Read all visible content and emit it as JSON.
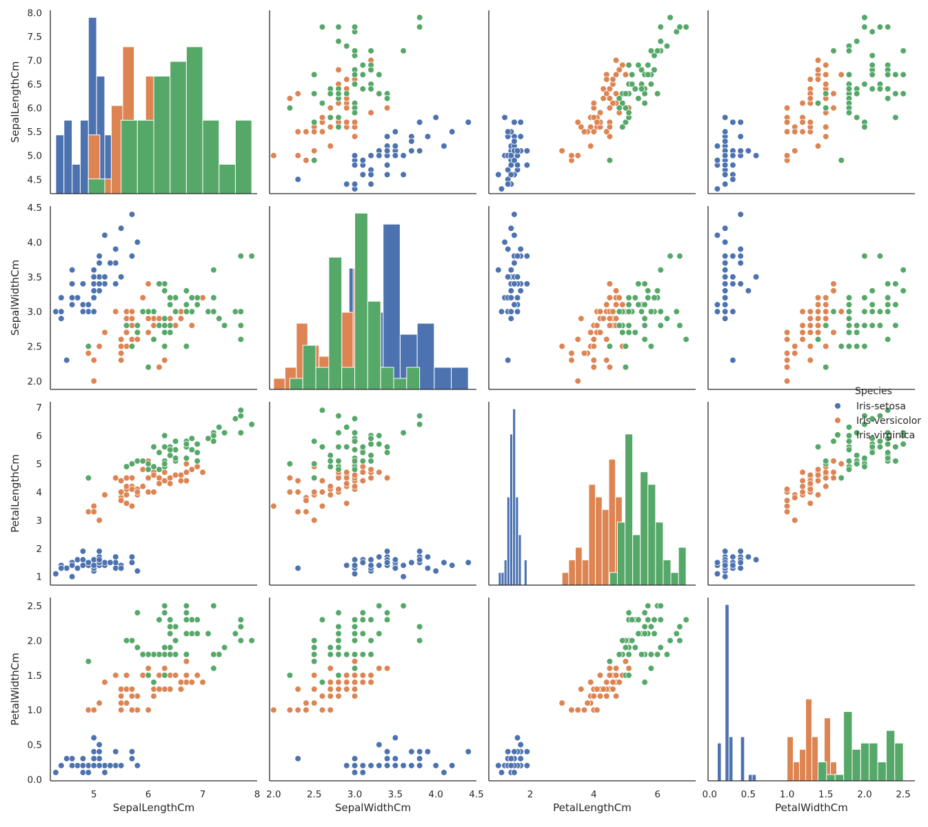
{
  "chart_data": {
    "type": "scatter",
    "title": "",
    "variables": [
      "SepalLengthCm",
      "SepalWidthCm",
      "PetalLengthCm",
      "PetalWidthCm"
    ],
    "axes": {
      "SepalLengthCm": {
        "lim": [
          4.2,
          8.0
        ],
        "ticks": [
          5,
          6,
          7,
          8
        ],
        "ytick_labels": [
          "4.5",
          "5.0",
          "5.5",
          "6.0",
          "6.5",
          "7.0",
          "7.5",
          "8.0"
        ],
        "yticks": [
          4.5,
          5.0,
          5.5,
          6.0,
          6.5,
          7.0,
          7.5,
          8.0
        ],
        "ylim": [
          4.2,
          8.05
        ]
      },
      "SepalWidthCm": {
        "lim": [
          1.95,
          4.5
        ],
        "ticks": [
          2.0,
          2.5,
          3.0,
          3.5,
          4.0,
          4.5
        ],
        "tick_labels": [
          "2.0",
          "2.5",
          "3.0",
          "3.5",
          "4.0",
          "4.5"
        ],
        "ytick_labels": [
          "2.0",
          "2.5",
          "3.0",
          "3.5",
          "4.0",
          "4.5"
        ],
        "yticks": [
          2.0,
          2.5,
          3.0,
          3.5,
          4.0,
          4.5
        ],
        "ylim": [
          1.88,
          4.52
        ]
      },
      "PetalLengthCm": {
        "lim": [
          0.7,
          7.2
        ],
        "ticks": [
          2,
          4,
          6
        ],
        "ytick_labels": [
          "1",
          "2",
          "3",
          "4",
          "5",
          "6",
          "7"
        ],
        "yticks": [
          1,
          2,
          3,
          4,
          5,
          6,
          7
        ],
        "ylim": [
          0.7,
          7.2
        ]
      },
      "PetalWidthCm": {
        "lim": [
          -0.02,
          2.65
        ],
        "ticks": [
          0.0,
          0.5,
          1.0,
          1.5,
          2.0,
          2.5
        ],
        "tick_labels": [
          "0.0",
          "0.5",
          "1.0",
          "1.5",
          "2.0",
          "2.5"
        ],
        "ytick_labels": [
          "0.0",
          "0.5",
          "1.0",
          "1.5",
          "2.0",
          "2.5"
        ],
        "yticks": [
          0.0,
          0.5,
          1.0,
          1.5,
          2.0,
          2.5
        ],
        "ylim": [
          -0.02,
          2.62
        ]
      }
    },
    "legend": {
      "title": "Species",
      "entries": [
        {
          "name": "Iris-setosa",
          "color": "#4c72b0"
        },
        {
          "name": "Iris-versicolor",
          "color": "#dd8452"
        },
        {
          "name": "Iris-virginica",
          "color": "#55a868"
        }
      ]
    },
    "series": [
      {
        "name": "Iris-setosa",
        "color": "#4c72b0",
        "points": [
          [
            5.1,
            3.5,
            1.4,
            0.2
          ],
          [
            4.9,
            3.0,
            1.4,
            0.2
          ],
          [
            4.7,
            3.2,
            1.3,
            0.2
          ],
          [
            4.6,
            3.1,
            1.5,
            0.2
          ],
          [
            5.0,
            3.6,
            1.4,
            0.2
          ],
          [
            5.4,
            3.9,
            1.7,
            0.4
          ],
          [
            4.6,
            3.4,
            1.4,
            0.3
          ],
          [
            5.0,
            3.4,
            1.5,
            0.2
          ],
          [
            4.4,
            2.9,
            1.4,
            0.2
          ],
          [
            4.9,
            3.1,
            1.5,
            0.1
          ],
          [
            5.4,
            3.7,
            1.5,
            0.2
          ],
          [
            4.8,
            3.4,
            1.6,
            0.2
          ],
          [
            4.8,
            3.0,
            1.4,
            0.1
          ],
          [
            4.3,
            3.0,
            1.1,
            0.1
          ],
          [
            5.8,
            4.0,
            1.2,
            0.2
          ],
          [
            5.7,
            4.4,
            1.5,
            0.4
          ],
          [
            5.4,
            3.9,
            1.3,
            0.4
          ],
          [
            5.1,
            3.5,
            1.4,
            0.3
          ],
          [
            5.7,
            3.8,
            1.7,
            0.3
          ],
          [
            5.1,
            3.8,
            1.5,
            0.3
          ],
          [
            5.4,
            3.4,
            1.7,
            0.2
          ],
          [
            5.1,
            3.7,
            1.5,
            0.4
          ],
          [
            4.6,
            3.6,
            1.0,
            0.2
          ],
          [
            5.1,
            3.3,
            1.7,
            0.5
          ],
          [
            4.8,
            3.4,
            1.9,
            0.2
          ],
          [
            5.0,
            3.0,
            1.6,
            0.2
          ],
          [
            5.0,
            3.4,
            1.6,
            0.4
          ],
          [
            5.2,
            3.5,
            1.5,
            0.2
          ],
          [
            5.2,
            3.4,
            1.4,
            0.2
          ],
          [
            4.7,
            3.2,
            1.6,
            0.2
          ],
          [
            4.8,
            3.1,
            1.6,
            0.2
          ],
          [
            5.4,
            3.4,
            1.5,
            0.4
          ],
          [
            5.2,
            4.1,
            1.5,
            0.1
          ],
          [
            5.5,
            4.2,
            1.4,
            0.2
          ],
          [
            4.9,
            3.1,
            1.5,
            0.1
          ],
          [
            5.0,
            3.2,
            1.2,
            0.2
          ],
          [
            5.5,
            3.5,
            1.3,
            0.2
          ],
          [
            4.9,
            3.1,
            1.5,
            0.1
          ],
          [
            4.4,
            3.0,
            1.3,
            0.2
          ],
          [
            5.1,
            3.4,
            1.5,
            0.2
          ],
          [
            5.0,
            3.5,
            1.3,
            0.3
          ],
          [
            4.5,
            2.3,
            1.3,
            0.3
          ],
          [
            4.4,
            3.2,
            1.3,
            0.2
          ],
          [
            5.0,
            3.5,
            1.6,
            0.6
          ],
          [
            5.1,
            3.8,
            1.9,
            0.4
          ],
          [
            4.8,
            3.0,
            1.4,
            0.3
          ],
          [
            5.1,
            3.8,
            1.6,
            0.2
          ],
          [
            4.6,
            3.2,
            1.4,
            0.2
          ],
          [
            5.3,
            3.7,
            1.5,
            0.2
          ],
          [
            5.0,
            3.3,
            1.4,
            0.2
          ]
        ]
      },
      {
        "name": "Iris-versicolor",
        "color": "#dd8452",
        "points": [
          [
            7.0,
            3.2,
            4.7,
            1.4
          ],
          [
            6.4,
            3.2,
            4.5,
            1.5
          ],
          [
            6.9,
            3.1,
            4.9,
            1.5
          ],
          [
            5.5,
            2.3,
            4.0,
            1.3
          ],
          [
            6.5,
            2.8,
            4.6,
            1.5
          ],
          [
            5.7,
            2.8,
            4.5,
            1.3
          ],
          [
            6.3,
            3.3,
            4.7,
            1.6
          ],
          [
            4.9,
            2.4,
            3.3,
            1.0
          ],
          [
            6.6,
            2.9,
            4.6,
            1.3
          ],
          [
            5.2,
            2.7,
            3.9,
            1.4
          ],
          [
            5.0,
            2.0,
            3.5,
            1.0
          ],
          [
            5.9,
            3.0,
            4.2,
            1.5
          ],
          [
            6.0,
            2.2,
            4.0,
            1.0
          ],
          [
            6.1,
            2.9,
            4.7,
            1.4
          ],
          [
            5.6,
            2.9,
            3.6,
            1.3
          ],
          [
            6.7,
            3.1,
            4.4,
            1.4
          ],
          [
            5.6,
            3.0,
            4.5,
            1.5
          ],
          [
            5.8,
            2.7,
            4.1,
            1.0
          ],
          [
            6.2,
            2.2,
            4.5,
            1.5
          ],
          [
            5.6,
            2.5,
            3.9,
            1.1
          ],
          [
            5.9,
            3.2,
            4.8,
            1.8
          ],
          [
            6.1,
            2.8,
            4.0,
            1.3
          ],
          [
            6.3,
            2.5,
            4.9,
            1.5
          ],
          [
            6.1,
            2.8,
            4.7,
            1.2
          ],
          [
            6.4,
            2.9,
            4.3,
            1.3
          ],
          [
            6.6,
            3.0,
            4.4,
            1.4
          ],
          [
            6.8,
            2.8,
            4.8,
            1.4
          ],
          [
            6.7,
            3.0,
            5.0,
            1.7
          ],
          [
            6.0,
            2.9,
            4.5,
            1.5
          ],
          [
            5.7,
            2.6,
            3.5,
            1.0
          ],
          [
            5.5,
            2.4,
            3.8,
            1.1
          ],
          [
            5.5,
            2.4,
            3.7,
            1.0
          ],
          [
            5.8,
            2.7,
            3.9,
            1.2
          ],
          [
            6.0,
            2.7,
            5.1,
            1.6
          ],
          [
            5.4,
            3.0,
            4.5,
            1.5
          ],
          [
            6.0,
            3.4,
            4.5,
            1.6
          ],
          [
            6.7,
            3.1,
            4.7,
            1.5
          ],
          [
            6.3,
            2.3,
            4.4,
            1.3
          ],
          [
            5.6,
            3.0,
            4.1,
            1.3
          ],
          [
            5.5,
            2.5,
            4.0,
            1.3
          ],
          [
            5.5,
            2.6,
            4.4,
            1.2
          ],
          [
            6.1,
            3.0,
            4.6,
            1.4
          ],
          [
            5.8,
            2.6,
            4.0,
            1.2
          ],
          [
            5.0,
            2.3,
            3.3,
            1.0
          ],
          [
            5.6,
            2.7,
            4.2,
            1.3
          ],
          [
            5.7,
            3.0,
            4.2,
            1.2
          ],
          [
            5.7,
            2.9,
            4.2,
            1.3
          ],
          [
            6.2,
            2.9,
            4.3,
            1.3
          ],
          [
            5.1,
            2.5,
            3.0,
            1.1
          ],
          [
            5.7,
            2.8,
            4.1,
            1.3
          ]
        ]
      },
      {
        "name": "Iris-virginica",
        "color": "#55a868",
        "points": [
          [
            6.3,
            3.3,
            6.0,
            2.5
          ],
          [
            5.8,
            2.7,
            5.1,
            1.9
          ],
          [
            7.1,
            3.0,
            5.9,
            2.1
          ],
          [
            6.3,
            2.9,
            5.6,
            1.8
          ],
          [
            6.5,
            3.0,
            5.8,
            2.2
          ],
          [
            7.6,
            3.0,
            6.6,
            2.1
          ],
          [
            4.9,
            2.5,
            4.5,
            1.7
          ],
          [
            7.3,
            2.9,
            6.3,
            1.8
          ],
          [
            6.7,
            2.5,
            5.8,
            1.8
          ],
          [
            7.2,
            3.6,
            6.1,
            2.5
          ],
          [
            6.5,
            3.2,
            5.1,
            2.0
          ],
          [
            6.4,
            2.7,
            5.3,
            1.9
          ],
          [
            6.8,
            3.0,
            5.5,
            2.1
          ],
          [
            5.7,
            2.5,
            5.0,
            2.0
          ],
          [
            5.8,
            2.8,
            5.1,
            2.4
          ],
          [
            6.4,
            3.2,
            5.3,
            2.3
          ],
          [
            6.5,
            3.0,
            5.5,
            1.8
          ],
          [
            7.7,
            3.8,
            6.7,
            2.2
          ],
          [
            7.7,
            2.6,
            6.9,
            2.3
          ],
          [
            6.0,
            2.2,
            5.0,
            1.5
          ],
          [
            6.9,
            3.2,
            5.7,
            2.3
          ],
          [
            5.6,
            2.8,
            4.9,
            2.0
          ],
          [
            7.7,
            2.8,
            6.7,
            2.0
          ],
          [
            6.3,
            2.7,
            4.9,
            1.8
          ],
          [
            6.7,
            3.3,
            5.7,
            2.1
          ],
          [
            7.2,
            3.2,
            6.0,
            1.8
          ],
          [
            6.2,
            2.8,
            4.8,
            1.8
          ],
          [
            6.1,
            3.0,
            4.9,
            1.8
          ],
          [
            6.4,
            2.8,
            5.6,
            2.1
          ],
          [
            7.2,
            3.0,
            5.8,
            1.6
          ],
          [
            7.4,
            2.8,
            6.1,
            1.9
          ],
          [
            7.9,
            3.8,
            6.4,
            2.0
          ],
          [
            6.4,
            2.8,
            5.6,
            2.2
          ],
          [
            6.3,
            2.8,
            5.1,
            1.5
          ],
          [
            6.1,
            2.6,
            5.6,
            1.4
          ],
          [
            7.7,
            3.0,
            6.1,
            2.3
          ],
          [
            6.3,
            3.4,
            5.6,
            2.4
          ],
          [
            6.4,
            3.1,
            5.5,
            1.8
          ],
          [
            6.0,
            3.0,
            4.8,
            1.8
          ],
          [
            6.9,
            3.1,
            5.4,
            2.1
          ],
          [
            6.7,
            3.1,
            5.6,
            2.4
          ],
          [
            6.9,
            3.1,
            5.1,
            2.3
          ],
          [
            5.8,
            2.7,
            5.1,
            1.9
          ],
          [
            6.8,
            3.2,
            5.9,
            2.3
          ],
          [
            6.7,
            3.3,
            5.7,
            2.5
          ],
          [
            6.7,
            3.0,
            5.2,
            2.3
          ],
          [
            6.3,
            2.5,
            5.0,
            1.9
          ],
          [
            6.5,
            3.0,
            5.2,
            2.0
          ],
          [
            6.2,
            3.4,
            5.4,
            2.3
          ],
          [
            5.9,
            3.0,
            5.1,
            1.8
          ]
        ]
      }
    ],
    "histograms": "diagonal panels show per-species histograms (10 bins each) of the same point data"
  }
}
